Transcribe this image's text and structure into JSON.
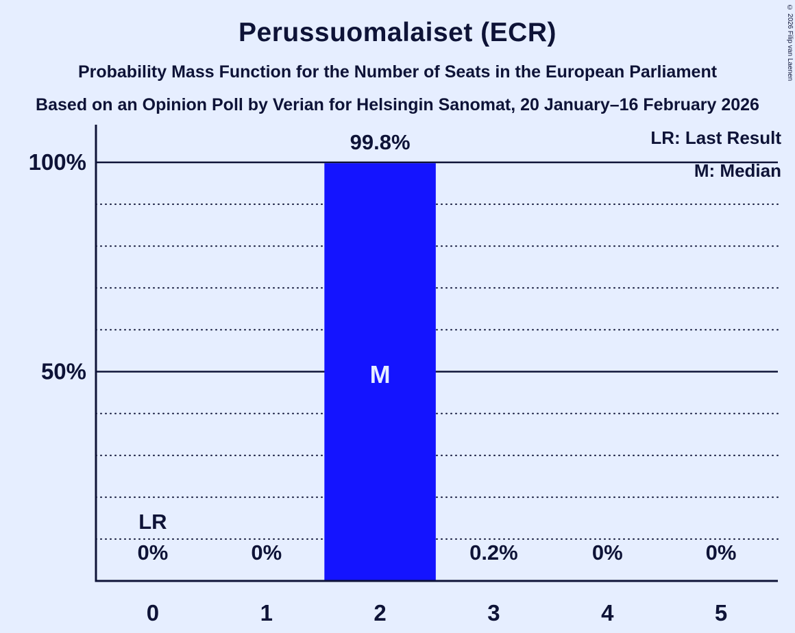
{
  "page": {
    "background": "#e6eeff",
    "text_color": "#0e1337"
  },
  "header": {
    "title": "Perussuomalaiset (ECR)",
    "subtitle1": "Probability Mass Function for the Number of Seats in the European Parliament",
    "subtitle2": "Based on an Opinion Poll by Verian for Helsingin Sanomat, 20 January–16 February 2026",
    "copyright": "© 2026 Filip van Laenen"
  },
  "legend": {
    "lr_label": "LR: Last Result",
    "m_label": "M: Median"
  },
  "chart_data": {
    "type": "bar",
    "title": "Perussuomalaiset (ECR)",
    "categories": [
      "0",
      "1",
      "2",
      "3",
      "4",
      "5"
    ],
    "values": [
      0,
      0,
      99.8,
      0.2,
      0,
      0
    ],
    "value_labels": [
      "0%",
      "0%",
      "99.8%",
      "0.2%",
      "0%",
      "0%"
    ],
    "xlabel": "",
    "ylabel": "",
    "ylim": [
      0,
      100
    ],
    "yticks": [
      {
        "value": 100,
        "label": "100%"
      },
      {
        "value": 50,
        "label": "50%"
      }
    ],
    "solid_gridlines": [
      50,
      100
    ],
    "dotted_gridlines": [
      10,
      20,
      30,
      40,
      60,
      70,
      80,
      90
    ],
    "grid": "horizontal-dotted",
    "legend_position": "top-right",
    "bar_color": "#1414ff",
    "median_index": 2,
    "median_marker": "M",
    "last_result_index": 0,
    "last_result_marker": "LR"
  }
}
